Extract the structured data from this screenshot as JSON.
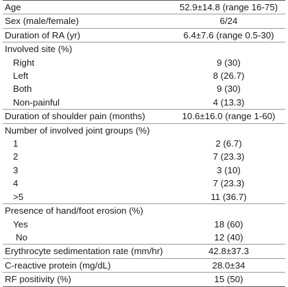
{
  "rows": [
    {
      "label": "Age",
      "value": "52.9±14.8 (range 16-75)"
    },
    {
      "label": "Sex (male/female)",
      "value": "6/24"
    },
    {
      "label": "Duration of RA (yr)",
      "value": "6.4±7.6 (range 0.5-30)"
    },
    {
      "label": "Involved site (%)",
      "value": ""
    },
    {
      "label": "Right",
      "value": "9 (30)"
    },
    {
      "label": "Left",
      "value": "8 (26.7)"
    },
    {
      "label": "Both",
      "value": "9 (30)"
    },
    {
      "label": "Non-painful",
      "value": "4 (13.3)"
    },
    {
      "label": "Duration of shoulder pain (months)",
      "value": "10.6±16.0 (range 1-60)"
    },
    {
      "label": "Number of involved joint groups (%)",
      "value": ""
    },
    {
      "label": "1",
      "value": "2 (6.7)"
    },
    {
      "label": "2",
      "value": "7 (23.3)"
    },
    {
      "label": "3",
      "value": "3 (10)"
    },
    {
      "label": "4",
      "value": "7 (23.3)"
    },
    {
      "label": ">5",
      "value": "11 (36.7)"
    },
    {
      "label": "Presence of hand/foot erosion (%)",
      "value": ""
    },
    {
      "label": "Yes",
      "value": "18 (60)"
    },
    {
      "label": "No",
      "value": "12 (40)"
    },
    {
      "label": "Erythrocyte sedimentation rate (mm/hr)",
      "value": "42.8±37.3"
    },
    {
      "label": "C-reactive protein  (mg/dL)",
      "value": "28.0±34"
    },
    {
      "label": "RF positivity (%)",
      "value": "15 (50)"
    }
  ]
}
